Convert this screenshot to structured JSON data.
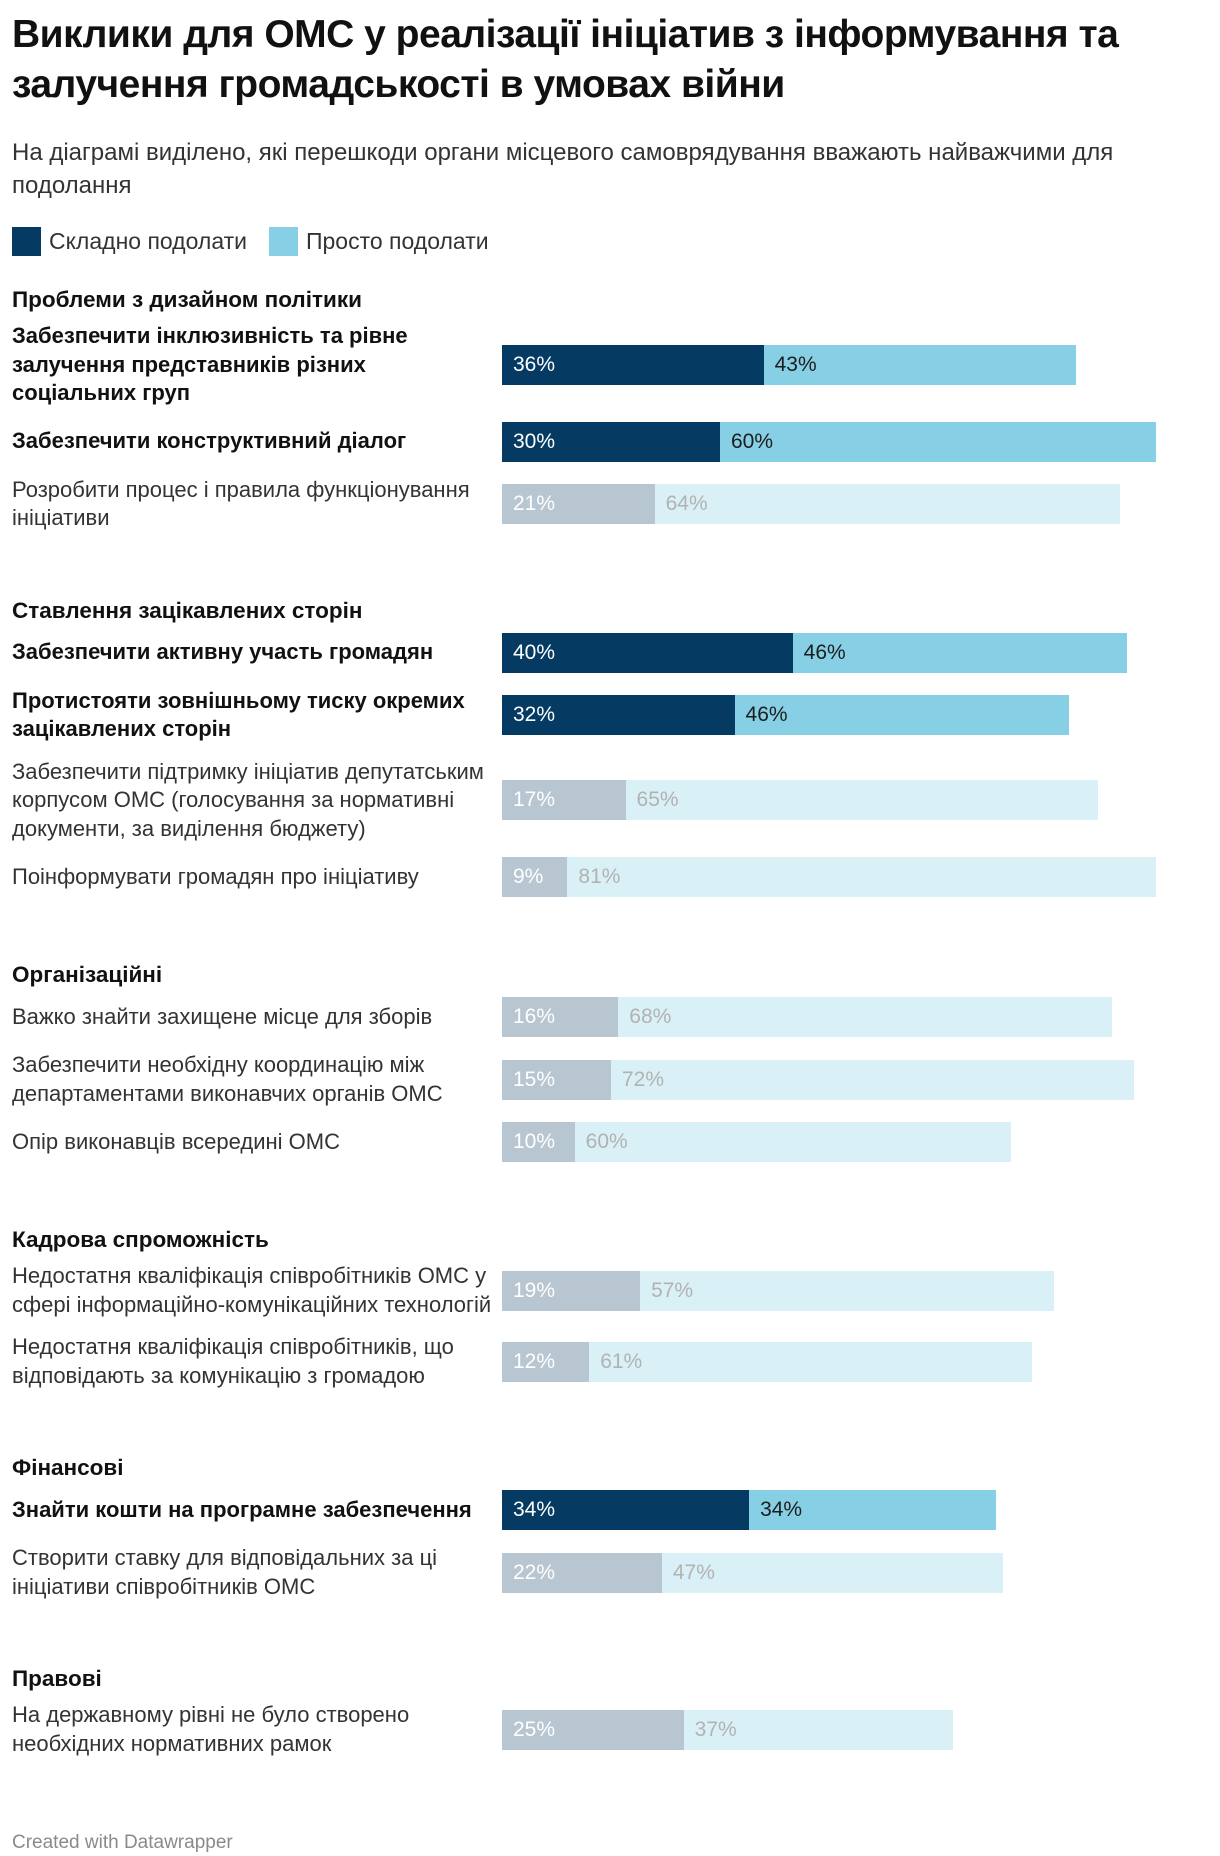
{
  "title": "Виклики для ОМС у реалізації ініціатив з інформування та залучення громадськості в умовах війни",
  "subtitle": "На діаграмі виділено, які перешкоди органи місцевого самоврядування вважають найважчими для подолання",
  "legend": [
    {
      "label": "Складно подолати",
      "color": "#053b63"
    },
    {
      "label": "Просто подолати",
      "color": "#86cfe5"
    }
  ],
  "footer": "Created with Datawrapper",
  "colors": {
    "hard": "#053b63",
    "easy": "#86cfe5",
    "hard_muted": "#b8c6d1",
    "easy_muted": "#d9f0f6",
    "hard_text": "#ffffff",
    "easy_text": "#1d1d1d",
    "hard_muted_text": "#ffffff",
    "easy_muted_text": "#b2b2b2"
  },
  "chart_data": {
    "type": "bar",
    "orientation": "horizontal",
    "stacked": true,
    "unit": "%",
    "xlim": [
      0,
      81
    ],
    "series": [
      {
        "name": "Складно подолати"
      },
      {
        "name": "Просто подолати"
      }
    ],
    "groups": [
      {
        "name": "Проблеми з дизайном політики",
        "rows": [
          {
            "label": "Забезпечити інклюзивність та рівне залучення представників різних соціальних груп",
            "hard": 36,
            "easy": 43,
            "highlight": true
          },
          {
            "label": "Забезпечити конструктивний діалог",
            "hard": 30,
            "easy": 60,
            "highlight": true
          },
          {
            "label": "Розробити процес і правила функціонування ініціативи",
            "hard": 21,
            "easy": 64,
            "highlight": false
          }
        ]
      },
      {
        "name": "Ставлення зацікавлених сторін",
        "rows": [
          {
            "label": "Забезпечити активну участь громадян",
            "hard": 40,
            "easy": 46,
            "highlight": true
          },
          {
            "label": "Протистояти зовнішньому тиску окремих зацікавлених сторін",
            "hard": 32,
            "easy": 46,
            "highlight": true
          },
          {
            "label": "Забезпечити підтримку ініціатив депутатським корпусом ОМС (голосування за нормативні документи, за виділення бюджету)",
            "hard": 17,
            "easy": 65,
            "highlight": false
          },
          {
            "label": "Поінформувати громадян про ініціативу",
            "hard": 9,
            "easy": 81,
            "highlight": false
          }
        ]
      },
      {
        "name": "Організаційні",
        "rows": [
          {
            "label": "Важко знайти захищене місце для зборів",
            "hard": 16,
            "easy": 68,
            "highlight": false
          },
          {
            "label": "Забезпечити необхідну координацію між департаментами виконавчих органів ОМС",
            "hard": 15,
            "easy": 72,
            "highlight": false
          },
          {
            "label": "Опір виконавців всередині ОМС",
            "hard": 10,
            "easy": 60,
            "highlight": false
          }
        ]
      },
      {
        "name": "Кадрова спроможність",
        "rows": [
          {
            "label": "Недостатня кваліфікація співробітників ОМС у сфері інформаційно-комунікаційних технологій",
            "hard": 19,
            "easy": 57,
            "highlight": false
          },
          {
            "label": "Недостатня кваліфікація співробітників, що відповідають за комунікацію з громадою",
            "hard": 12,
            "easy": 61,
            "highlight": false
          }
        ]
      },
      {
        "name": "Фінансові",
        "rows": [
          {
            "label": "Знайти кошти на програмне забезпечення",
            "hard": 34,
            "easy": 34,
            "highlight": true
          },
          {
            "label": "Створити ставку для відповідальних за ці ініціативи співробітників ОМС",
            "hard": 22,
            "easy": 47,
            "highlight": false
          }
        ]
      },
      {
        "name": "Правові",
        "rows": [
          {
            "label": "На державному рівні не було створено необхідних нормативних рамок",
            "hard": 25,
            "easy": 37,
            "highlight": false
          }
        ]
      }
    ]
  }
}
